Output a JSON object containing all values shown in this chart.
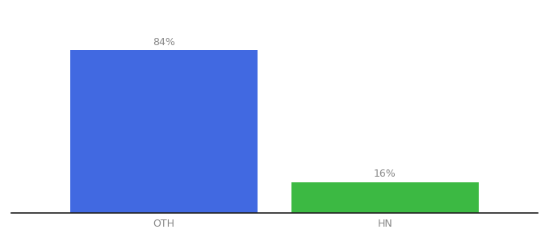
{
  "categories": [
    "OTH",
    "HN"
  ],
  "values": [
    84,
    16
  ],
  "bar_colors": [
    "#4169E1",
    "#3CB943"
  ],
  "label_texts": [
    "84%",
    "16%"
  ],
  "background_color": "#ffffff",
  "ylim": [
    0,
    100
  ],
  "label_fontsize": 9,
  "tick_fontsize": 9,
  "bar_width": 0.55,
  "x_positions": [
    0.35,
    1.0
  ],
  "xlim": [
    -0.1,
    1.45
  ]
}
